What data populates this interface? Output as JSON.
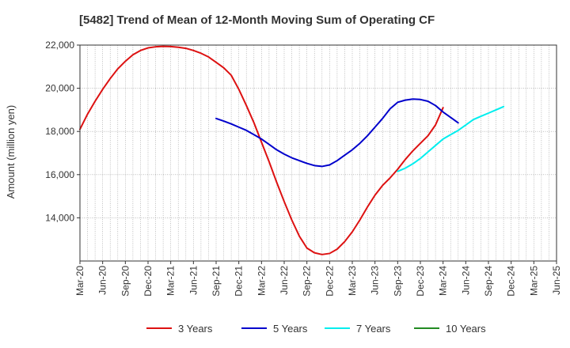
{
  "chart_data": {
    "type": "line",
    "title": "[5482]  Trend of Mean of 12-Month Moving Sum of Operating CF",
    "xlabel": "",
    "ylabel": "Amount (million yen)",
    "ylim": [
      12000,
      22000
    ],
    "yticks": [
      14000,
      16000,
      18000,
      20000,
      22000
    ],
    "ytick_labels": [
      "14,000",
      "16,000",
      "18,000",
      "20,000",
      "22,000"
    ],
    "x_start": "Mar-20",
    "x_end": "Jun-25",
    "xtick_labels": [
      "Mar-20",
      "Jun-20",
      "Sep-20",
      "Dec-20",
      "Mar-21",
      "Jun-21",
      "Sep-21",
      "Dec-21",
      "Mar-22",
      "Jun-22",
      "Sep-22",
      "Dec-22",
      "Mar-23",
      "Jun-23",
      "Sep-23",
      "Dec-23",
      "Mar-24",
      "Jun-24",
      "Sep-24",
      "Dec-24",
      "Mar-25",
      "Jun-25"
    ],
    "grid": true,
    "legend_position": "bottom",
    "series": [
      {
        "name": "3 Years",
        "color": "#dd1111",
        "start": "Mar-20",
        "values": [
          18100,
          18800,
          19400,
          19950,
          20450,
          20900,
          21250,
          21550,
          21750,
          21870,
          21920,
          21940,
          21930,
          21900,
          21850,
          21750,
          21620,
          21450,
          21200,
          20950,
          20600,
          19950,
          19200,
          18400,
          17500,
          16600,
          15650,
          14750,
          13900,
          13150,
          12600,
          12380,
          12300,
          12350,
          12550,
          12900,
          13350,
          13900,
          14500,
          15050,
          15500,
          15850,
          16250,
          16700,
          17100,
          17450,
          17800,
          18300,
          19100
        ]
      },
      {
        "name": "5 Years",
        "color": "#0000cc",
        "start": "Sep-21",
        "values": [
          18600,
          18480,
          18350,
          18200,
          18050,
          17850,
          17650,
          17400,
          17150,
          16950,
          16780,
          16650,
          16520,
          16420,
          16380,
          16450,
          16650,
          16900,
          17150,
          17450,
          17800,
          18200,
          18600,
          19050,
          19350,
          19450,
          19500,
          19480,
          19400,
          19200,
          18900,
          18650,
          18400
        ]
      },
      {
        "name": "7 Years",
        "color": "#00eeee",
        "start": "Sep-23",
        "values": [
          16150,
          16300,
          16500,
          16750,
          17050,
          17350,
          17650,
          17850,
          18050,
          18300,
          18550,
          18700,
          18850,
          19000,
          19150
        ]
      },
      {
        "name": "10 Years",
        "color": "#228b22",
        "start": "Mar-25",
        "values": []
      }
    ]
  }
}
